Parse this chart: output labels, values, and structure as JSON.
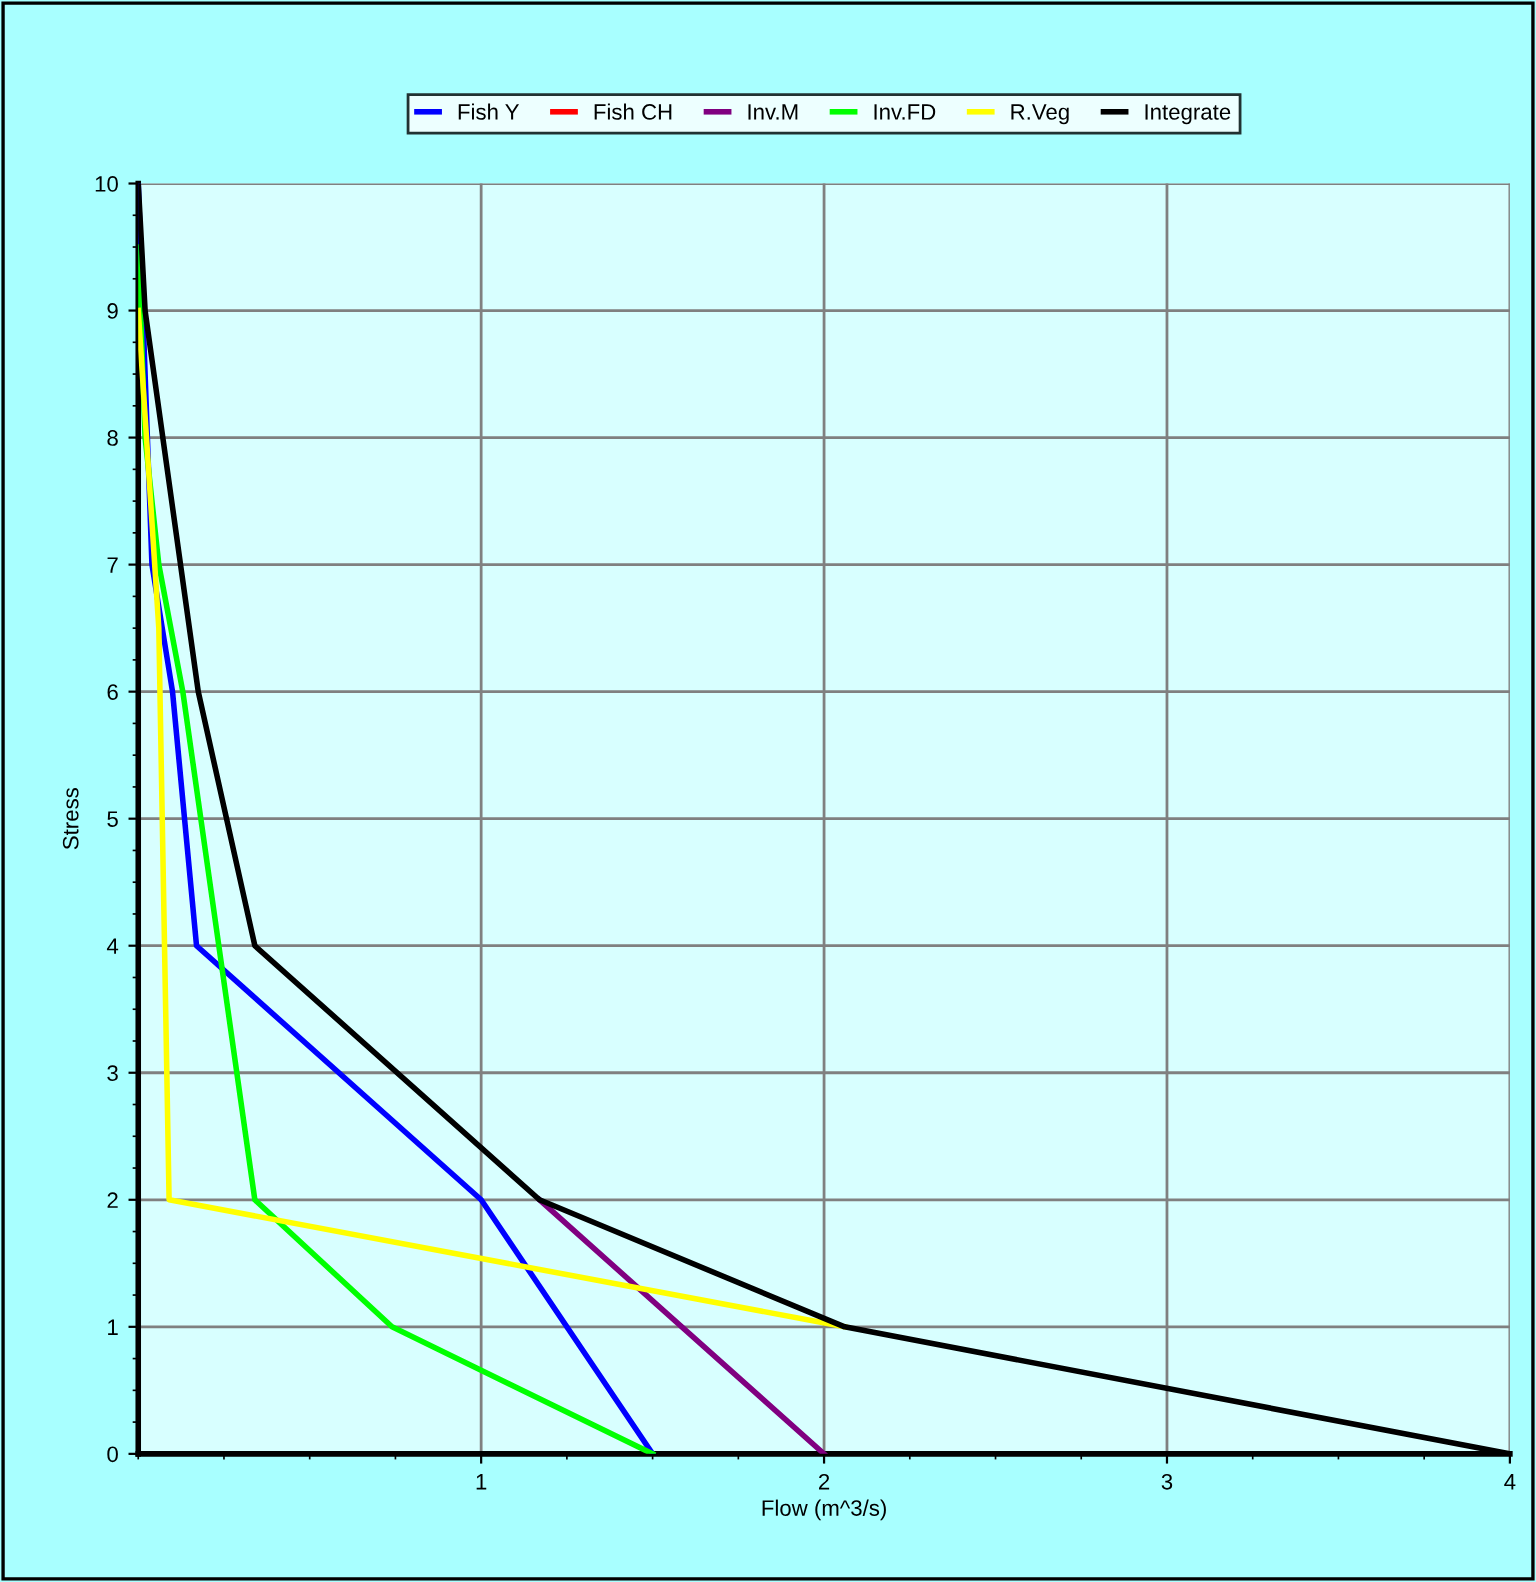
{
  "chart_data": {
    "type": "line",
    "xlabel": "Flow (m^3/s)",
    "ylabel": "Stress",
    "xlim": [
      0,
      4
    ],
    "xticks": [
      1,
      2,
      3,
      4
    ],
    "ylim": [
      0,
      10
    ],
    "yticks": [
      0,
      1,
      2,
      3,
      4,
      5,
      6,
      7,
      8,
      9,
      10
    ],
    "grid": true,
    "legend": "top",
    "line_style": "solid",
    "series": [
      {
        "name": "Fish Y",
        "color": "#0000ff",
        "x": [
          1.5,
          1,
          0.17,
          0.1,
          0.04,
          0
        ],
        "values": [
          0,
          2,
          4,
          6,
          7,
          10
        ]
      },
      {
        "name": "Fish CH",
        "color": "#ff0000"
      },
      {
        "name": "Inv.M",
        "color": "#800080",
        "x": [
          2,
          1.17
        ],
        "values": [
          0,
          2
        ]
      },
      {
        "name": "Inv.FD",
        "color": "#00ff00",
        "x": [
          1.5,
          0.74,
          0.34,
          0.13,
          0.06,
          0.02,
          0
        ],
        "values": [
          0,
          1,
          2,
          6,
          7,
          8,
          9.5
        ]
      },
      {
        "name": "R.Veg",
        "color": "#ffff00",
        "x": [
          2.06,
          0.09,
          0.06,
          0
        ],
        "values": [
          1,
          2,
          6.5,
          9
        ]
      },
      {
        "name": "Integrate",
        "color": "#000000",
        "x": [
          4,
          2.06,
          1.17,
          0.34,
          0.175,
          0.02,
          0
        ],
        "values": [
          0,
          1,
          2,
          4,
          6,
          9,
          10
        ]
      }
    ]
  }
}
